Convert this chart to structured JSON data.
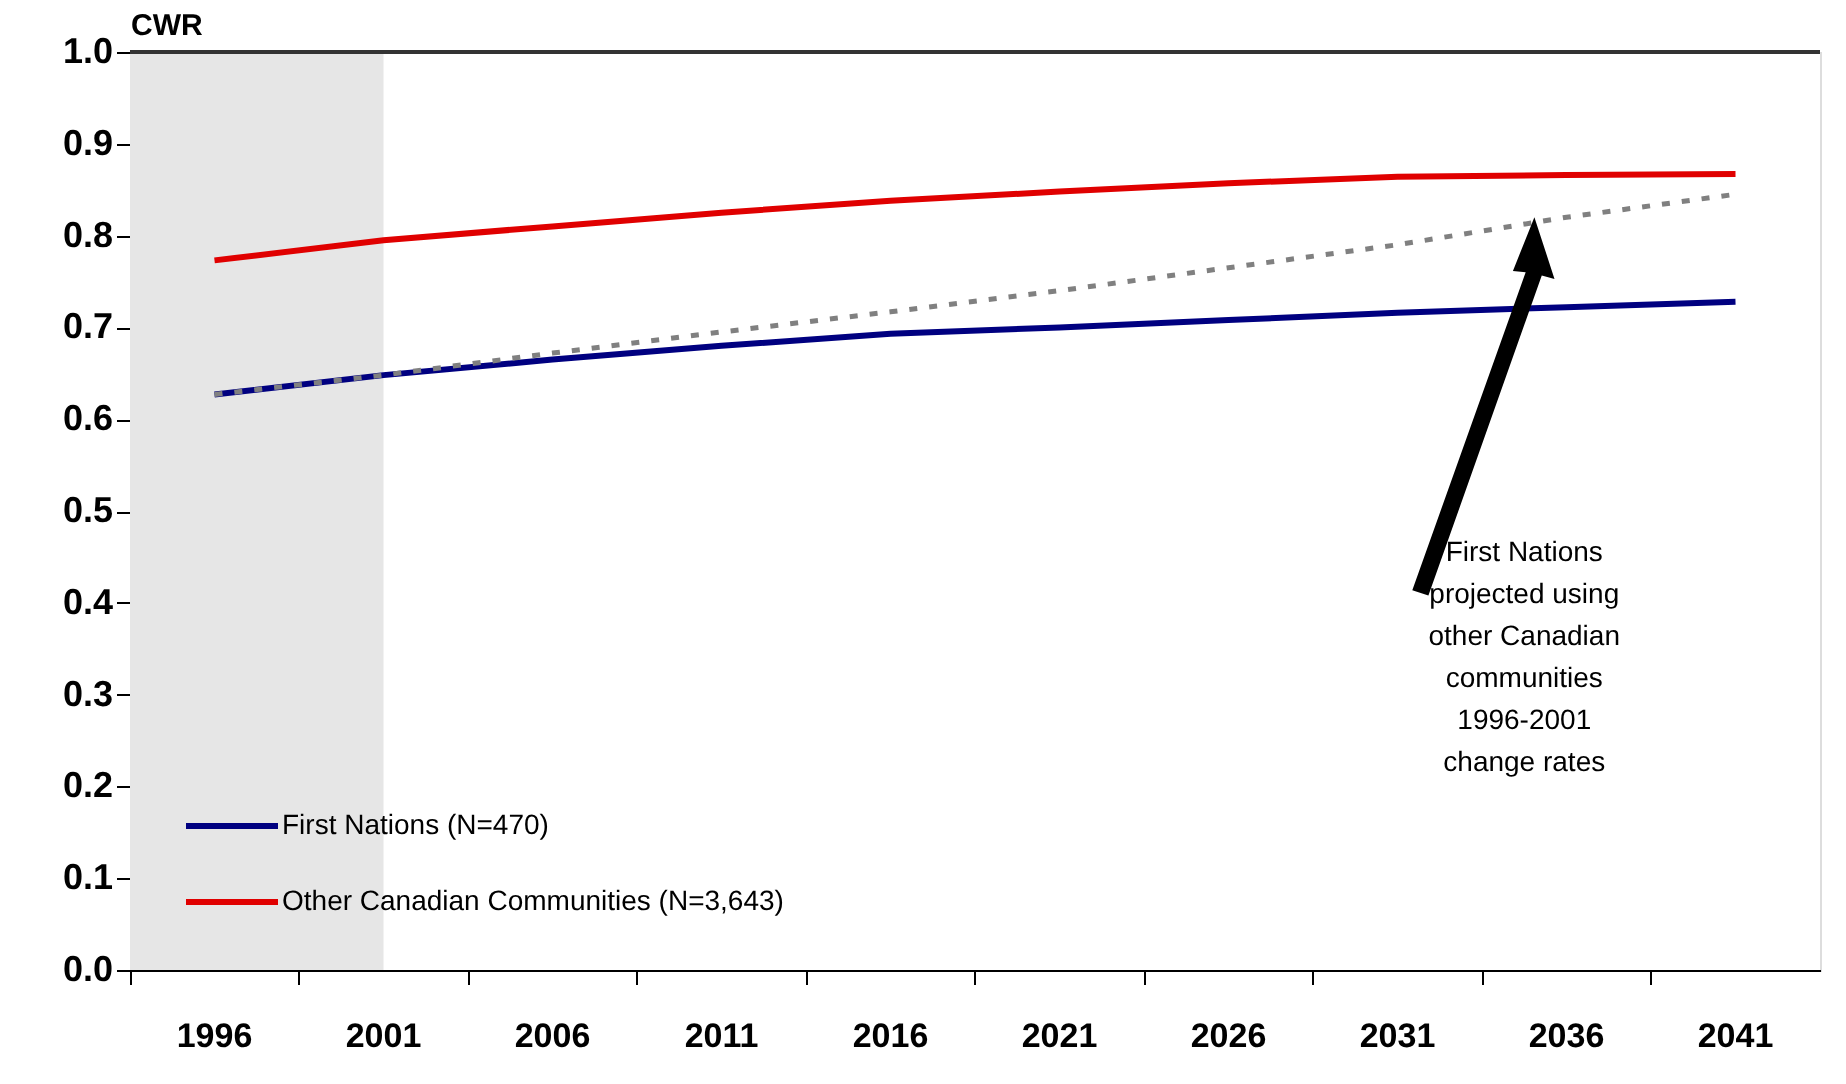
{
  "chart_data": {
    "type": "line",
    "ylabel": "CWR",
    "categories": [
      "1996",
      "2001",
      "2006",
      "2011",
      "2016",
      "2021",
      "2026",
      "2031",
      "2036",
      "2041"
    ],
    "series": [
      {
        "name": "First Nations (N=470)",
        "color": "#000080",
        "values": [
          0.627,
          0.648,
          0.665,
          0.68,
          0.693,
          0.7,
          0.708,
          0.716,
          0.722,
          0.728
        ]
      },
      {
        "name": "Other Canadian Communities (N=3,643)",
        "color": "#e00000",
        "values": [
          0.773,
          0.795,
          0.81,
          0.825,
          0.838,
          0.848,
          0.857,
          0.864,
          0.866,
          0.867
        ]
      },
      {
        "color": "#808080",
        "line_style": "dashed",
        "values": [
          0.627,
          0.648,
          0.672,
          0.695,
          0.717,
          0.74,
          0.765,
          0.79,
          0.82,
          0.845
        ]
      }
    ],
    "ylim": [
      0,
      1
    ],
    "yticks": [
      {
        "value": 0,
        "label": "0.0"
      },
      {
        "value": 0.1,
        "label": "0.1"
      },
      {
        "value": 0.2,
        "label": "0.2"
      },
      {
        "value": 0.3,
        "label": "0.3"
      },
      {
        "value": 0.4,
        "label": "0.4"
      },
      {
        "value": 0.5,
        "label": "0.5"
      },
      {
        "value": 0.6,
        "label": "0.6"
      },
      {
        "value": 0.7,
        "label": "0.7"
      },
      {
        "value": 0.8,
        "label": "0.8"
      },
      {
        "value": 0.9,
        "label": "0.9"
      },
      {
        "value": 1,
        "label": "1.0"
      }
    ],
    "bands": [
      {
        "axis": "x",
        "from": "1996",
        "to": "2001",
        "color": "#e6e6e6"
      }
    ],
    "annotations": [
      "First Nations\nprojected using\nother Canadian\ncommunities\n1996-2001\nchange rates"
    ],
    "grid": false,
    "legend": "bottom left",
    "marker": "none"
  }
}
